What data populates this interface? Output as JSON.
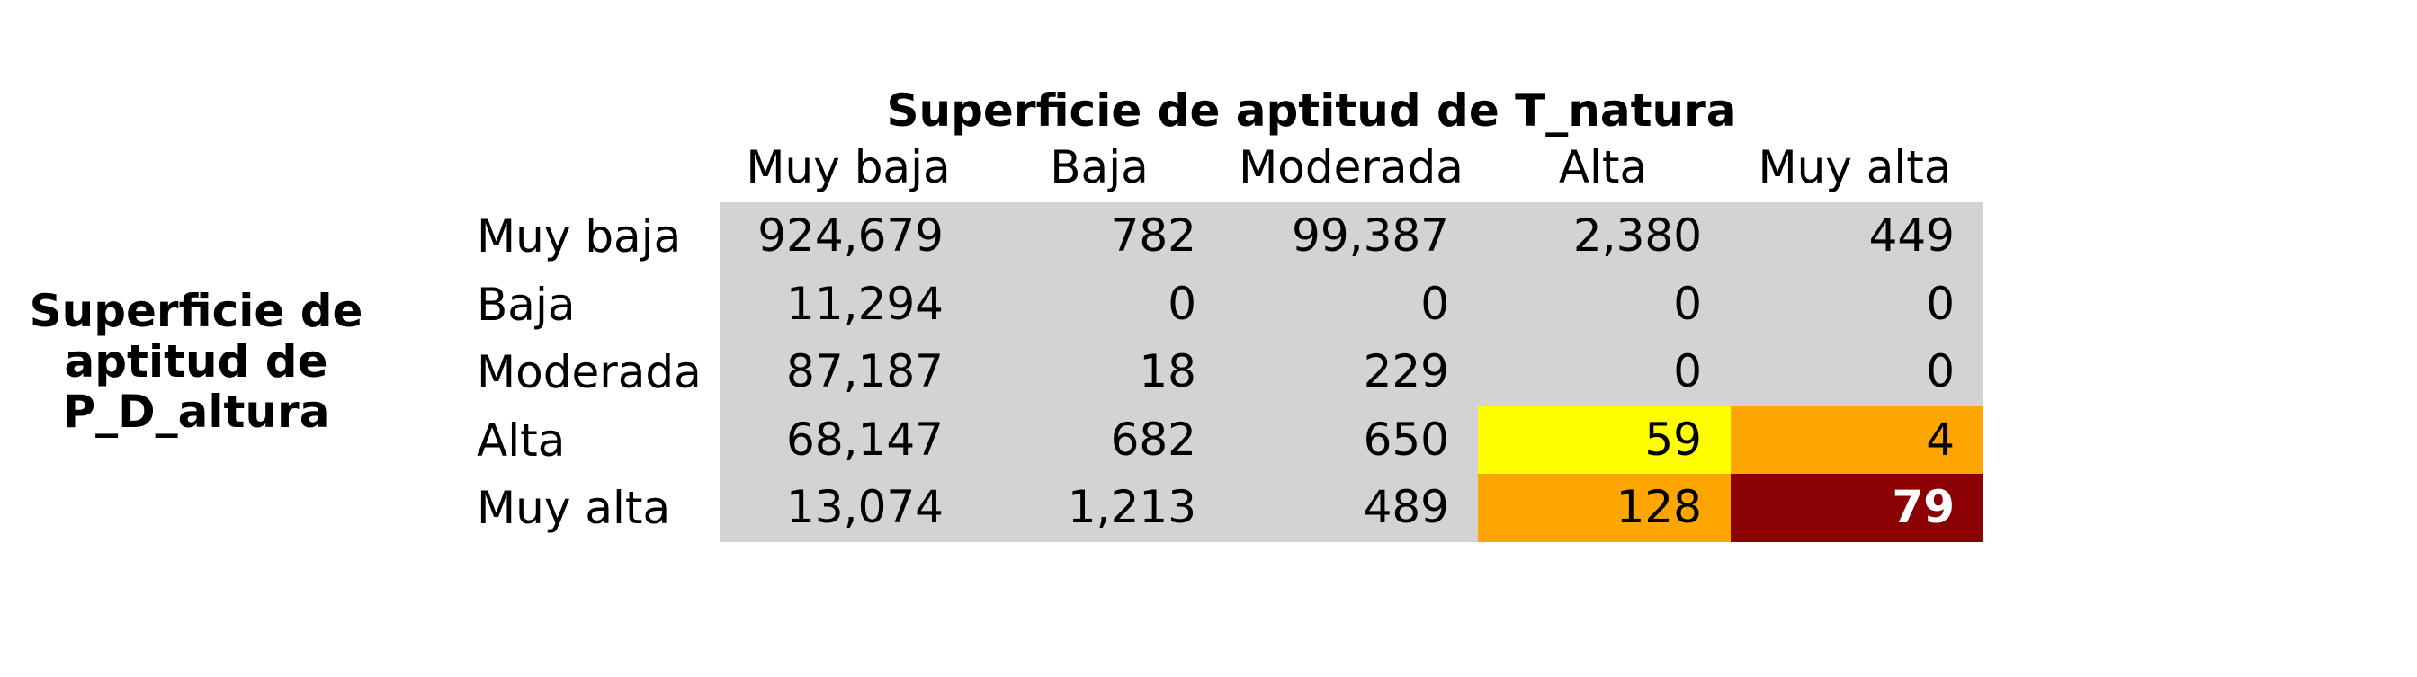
{
  "chart_data": {
    "type": "table",
    "title": "Superficie de aptitud de T_natura",
    "row_title_lines": [
      "Superficie de",
      "aptitud de",
      "P_D_altura"
    ],
    "columns": [
      "Muy baja",
      "Baja",
      "Moderada",
      "Alta",
      "Muy alta"
    ],
    "rows": [
      "Muy baja",
      "Baja",
      "Moderada",
      "Alta",
      "Muy alta"
    ],
    "values": [
      [
        "924,679",
        "782",
        "99,387",
        "2,380",
        "449"
      ],
      [
        "11,294",
        "0",
        "0",
        "0",
        "0"
      ],
      [
        "87,187",
        "18",
        "229",
        "0",
        "0"
      ],
      [
        "68,147",
        "682",
        "650",
        "59",
        "4"
      ],
      [
        "13,074",
        "1,213",
        "489",
        "128",
        "79"
      ]
    ],
    "cell_colors": [
      [
        "#d3d3d3",
        "#d3d3d3",
        "#d3d3d3",
        "#d3d3d3",
        "#d3d3d3"
      ],
      [
        "#d3d3d3",
        "#d3d3d3",
        "#d3d3d3",
        "#d3d3d3",
        "#d3d3d3"
      ],
      [
        "#d3d3d3",
        "#d3d3d3",
        "#d3d3d3",
        "#d3d3d3",
        "#d3d3d3"
      ],
      [
        "#d3d3d3",
        "#d3d3d3",
        "#d3d3d3",
        "#ffff00",
        "#ffa500"
      ],
      [
        "#d3d3d3",
        "#d3d3d3",
        "#d3d3d3",
        "#ffa500",
        "#8b0000"
      ]
    ],
    "highlight_text_color": "#ffffff"
  }
}
